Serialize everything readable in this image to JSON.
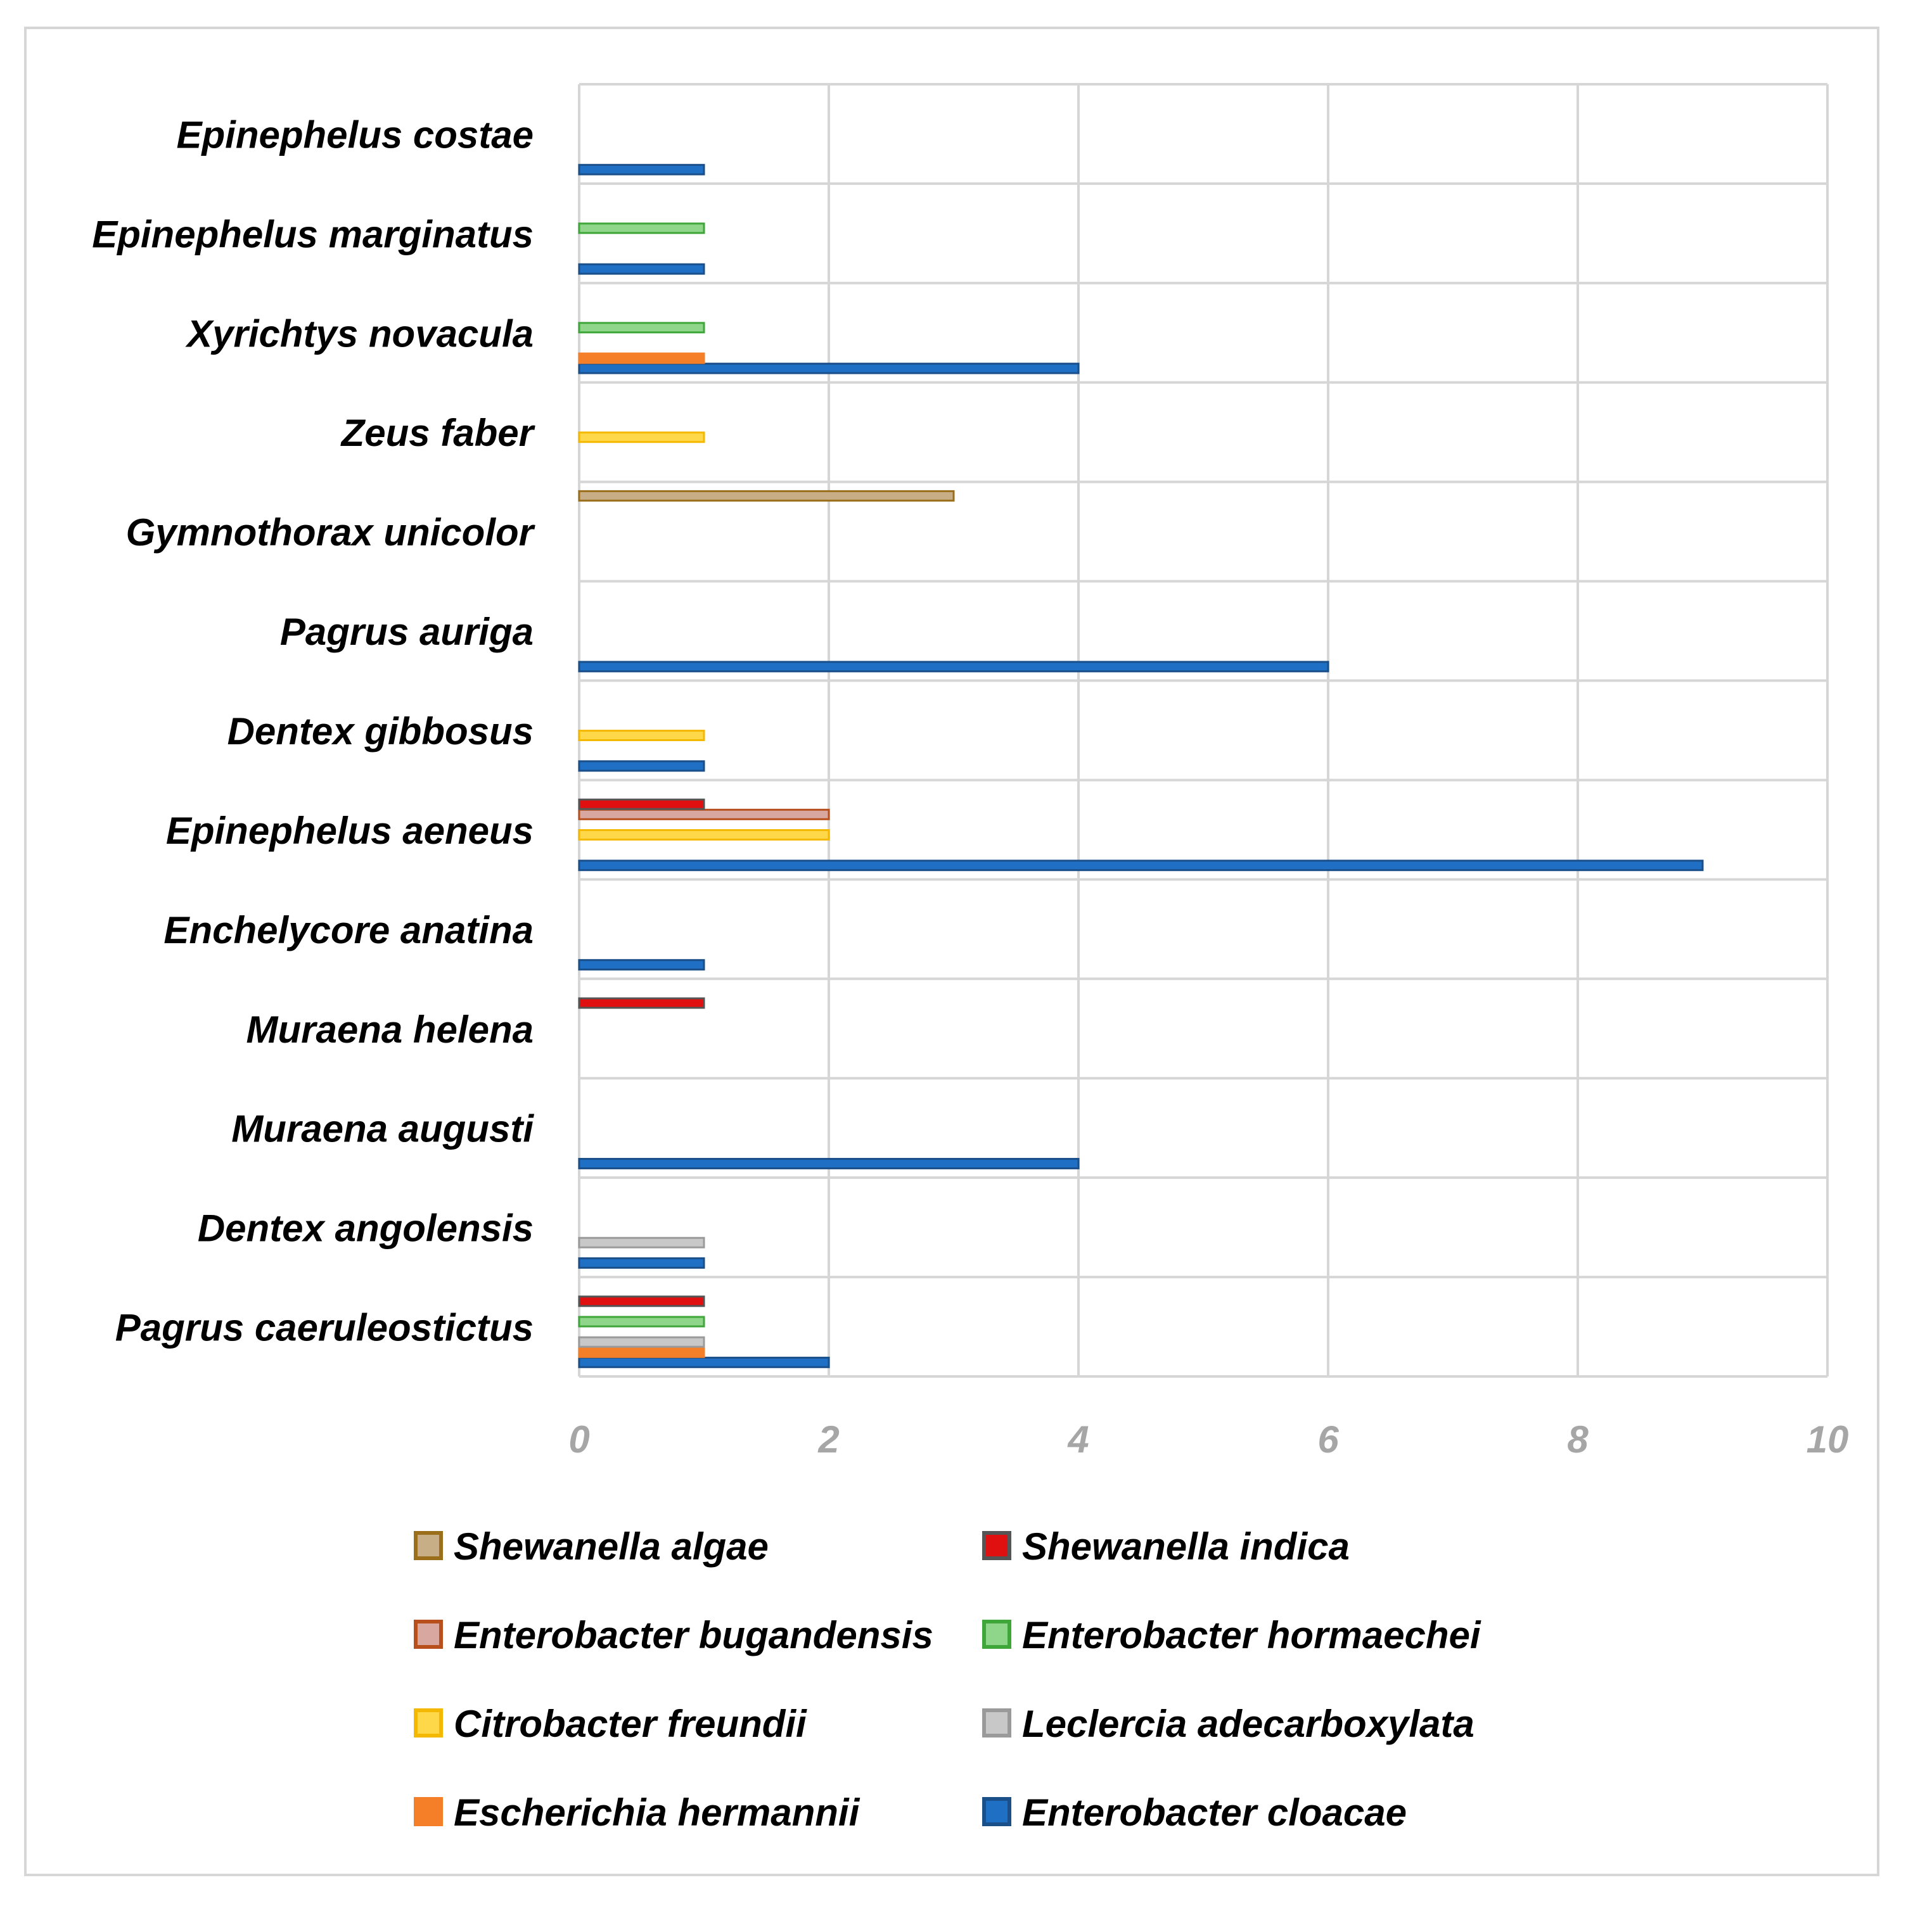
{
  "chart_data": {
    "type": "bar",
    "orientation": "horizontal",
    "title": "",
    "xlabel": "",
    "ylabel": "",
    "xlim": [
      0,
      10
    ],
    "x_ticks": [
      0,
      2,
      4,
      6,
      8,
      10
    ],
    "grid": true,
    "legend_position": "bottom",
    "categories": [
      "Pagrus caeruleostictus",
      "Dentex angolensis",
      "Muraena augusti",
      "Muraena helena",
      "Enchelycore anatina",
      "Epinephelus aeneus",
      "Dentex gibbosus",
      "Pagrus auriga",
      "Gymnothorax unicolor",
      "Zeus faber",
      "Xyrichtys novacula",
      "Epinephelus marginatus",
      "Epinephelus costae"
    ],
    "series": [
      {
        "name": "Enterobacter cloacae",
        "fill": "#1f6fc4",
        "stroke": "#1b4f8a",
        "values": [
          2,
          1,
          4,
          0,
          1,
          9,
          1,
          6,
          0,
          0,
          4,
          1,
          1
        ]
      },
      {
        "name": "Escherichia hermannii",
        "fill": "#f57f28",
        "stroke": "#f57f28",
        "values": [
          1,
          0,
          0,
          0,
          0,
          0,
          0,
          0,
          0,
          0,
          1,
          0,
          0
        ]
      },
      {
        "name": "Leclercia adecarboxylata",
        "fill": "#c8c8c8",
        "stroke": "#9a9a9a",
        "values": [
          1,
          1,
          0,
          0,
          0,
          0,
          0,
          0,
          0,
          0,
          0,
          0,
          0
        ]
      },
      {
        "name": "Citrobacter freundii",
        "fill": "#ffd84a",
        "stroke": "#f5b800",
        "values": [
          0,
          0,
          0,
          0,
          0,
          2,
          1,
          0,
          0,
          1,
          0,
          0,
          0
        ]
      },
      {
        "name": "Enterobacter hormaechei",
        "fill": "#8fd68a",
        "stroke": "#3fa63a",
        "values": [
          1,
          0,
          0,
          0,
          0,
          0,
          0,
          0,
          0,
          0,
          1,
          1,
          0
        ]
      },
      {
        "name": "Enterobacter bugandensis",
        "fill": "#d8a8a0",
        "stroke": "#b8501e",
        "values": [
          0,
          0,
          0,
          0,
          0,
          2,
          0,
          0,
          0,
          0,
          0,
          0,
          0
        ]
      },
      {
        "name": "Shewanella indica",
        "fill": "#e01010",
        "stroke": "#555555",
        "values": [
          1,
          0,
          0,
          1,
          0,
          1,
          0,
          0,
          0,
          0,
          0,
          0,
          0
        ]
      },
      {
        "name": "Shewanella algae",
        "fill": "#c8ae86",
        "stroke": "#9a6e1a",
        "values": [
          0,
          0,
          0,
          0,
          0,
          0,
          0,
          0,
          3,
          0,
          0,
          0,
          0
        ]
      }
    ],
    "legend_order": [
      "Shewanella algae",
      "Shewanella indica",
      "Enterobacter bugandensis",
      "Enterobacter hormaechei",
      "Citrobacter freundii",
      "Leclercia adecarboxylata",
      "Escherichia hermannii",
      "Enterobacter cloacae"
    ]
  }
}
